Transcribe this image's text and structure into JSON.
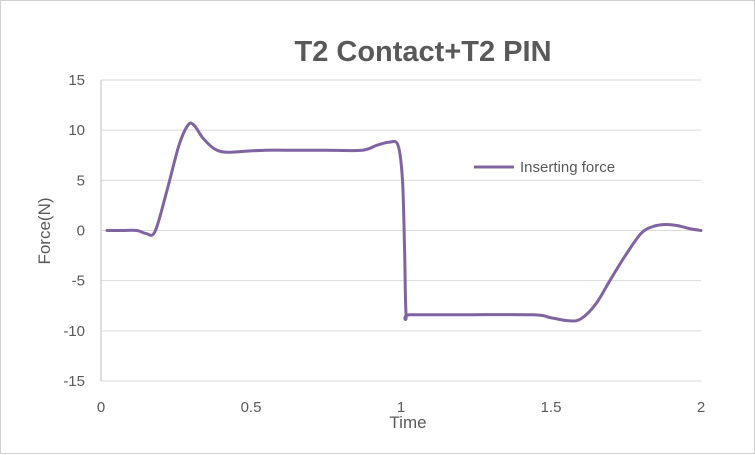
{
  "chart_data": {
    "type": "line",
    "title": "T2 Contact+T2 PIN",
    "xlabel": "Time",
    "ylabel": "Force(N)",
    "xlim": [
      0,
      2
    ],
    "ylim": [
      -15,
      15
    ],
    "xticks": [
      0,
      0.5,
      1,
      1.5,
      2
    ],
    "yticks": [
      15,
      10,
      5,
      0,
      -5,
      -10,
      -15
    ],
    "xtick_labels": [
      "0",
      "0.5",
      "1",
      "1.5",
      "2"
    ],
    "ytick_labels": [
      "15",
      "10",
      "5",
      "0",
      "-5",
      "-10",
      "-15"
    ],
    "grid": "horizontal",
    "legend_position": "right",
    "series": [
      {
        "name": "Inserting force",
        "color": "#8064a2",
        "points": [
          [
            0.02,
            0
          ],
          [
            0.07,
            0
          ],
          [
            0.12,
            0
          ],
          [
            0.15,
            -0.3
          ],
          [
            0.18,
            -0.1
          ],
          [
            0.22,
            4.0
          ],
          [
            0.26,
            8.5
          ],
          [
            0.29,
            10.5
          ],
          [
            0.31,
            10.5
          ],
          [
            0.34,
            9.2
          ],
          [
            0.38,
            8.1
          ],
          [
            0.42,
            7.8
          ],
          [
            0.48,
            7.9
          ],
          [
            0.55,
            8.0
          ],
          [
            0.65,
            8.0
          ],
          [
            0.75,
            8.0
          ],
          [
            0.87,
            8.0
          ],
          [
            0.92,
            8.5
          ],
          [
            0.96,
            8.8
          ],
          [
            0.99,
            8.5
          ],
          [
            1.005,
            5.0
          ],
          [
            1.012,
            -2.0
          ],
          [
            1.017,
            -8.4
          ],
          [
            1.03,
            -8.4
          ],
          [
            1.2,
            -8.4
          ],
          [
            1.44,
            -8.4
          ],
          [
            1.5,
            -8.7
          ],
          [
            1.56,
            -9.0
          ],
          [
            1.6,
            -8.8
          ],
          [
            1.65,
            -7.3
          ],
          [
            1.7,
            -4.8
          ],
          [
            1.75,
            -2.4
          ],
          [
            1.8,
            -0.3
          ],
          [
            1.84,
            0.4
          ],
          [
            1.88,
            0.6
          ],
          [
            1.92,
            0.5
          ],
          [
            1.96,
            0.2
          ],
          [
            2.0,
            0
          ]
        ]
      }
    ]
  }
}
